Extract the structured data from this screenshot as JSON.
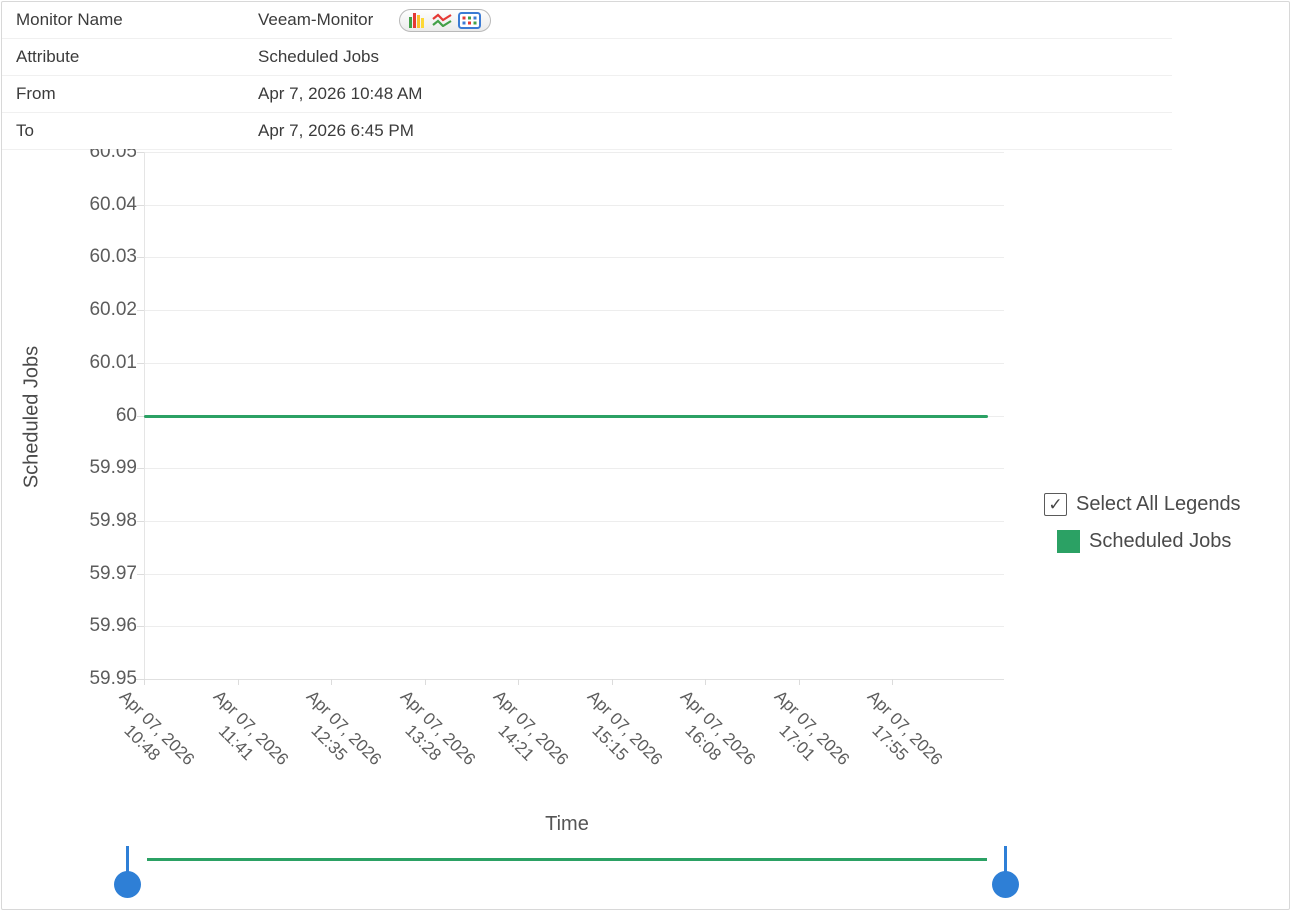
{
  "info_table": {
    "rows": [
      {
        "label": "Monitor Name",
        "value": "Veeam-Monitor"
      },
      {
        "label": "Attribute",
        "value": "Scheduled Jobs"
      },
      {
        "label": "From",
        "value": "Apr 7, 2026 10:48 AM"
      },
      {
        "label": "To",
        "value": "Apr 7, 2026 6:45 PM"
      }
    ],
    "chart_type_switcher": {
      "icons": [
        "bar-chart-icon",
        "line-chart-icon",
        "table-view-icon"
      ]
    }
  },
  "chart_data": {
    "type": "line",
    "title": "",
    "xlabel": "Time",
    "ylabel": "Scheduled Jobs",
    "ylim": [
      59.95,
      60.05
    ],
    "grid": true,
    "legend_position": "right",
    "y_ticks": [
      "60.05",
      "60.04",
      "60.03",
      "60.02",
      "60.01",
      "60",
      "59.99",
      "59.98",
      "59.97",
      "59.96",
      "59.95"
    ],
    "x_ticks": [
      {
        "date": "Apr 07, 2026",
        "time": "10:48"
      },
      {
        "date": "Apr 07, 2026",
        "time": "11:41"
      },
      {
        "date": "Apr 07, 2026",
        "time": "12:35"
      },
      {
        "date": "Apr 07, 2026",
        "time": "13:28"
      },
      {
        "date": "Apr 07, 2026",
        "time": "14:21"
      },
      {
        "date": "Apr 07, 2026",
        "time": "15:15"
      },
      {
        "date": "Apr 07, 2026",
        "time": "16:08"
      },
      {
        "date": "Apr 07, 2026",
        "time": "17:01"
      },
      {
        "date": "Apr 07, 2026",
        "time": "17:55"
      }
    ],
    "series": [
      {
        "name": "Scheduled Jobs",
        "color": "#2ba164",
        "values": [
          60,
          60,
          60,
          60,
          60,
          60,
          60,
          60,
          60
        ]
      }
    ]
  },
  "legend": {
    "select_all_label": "Select All Legends",
    "select_all_checked": true,
    "check_glyph": "✓",
    "items": [
      {
        "label": "Scheduled Jobs",
        "color": "#2ba164"
      }
    ]
  },
  "range_slider": {
    "track_color": "#2ba164",
    "handle_color": "#2e7fd6",
    "left_position_pct": 0,
    "right_position_pct": 100
  },
  "colors": {
    "accent_green": "#2ba164",
    "handle_blue": "#2e7fd6",
    "gridline": "#ededed",
    "axis_line": "#e0e0e0"
  }
}
